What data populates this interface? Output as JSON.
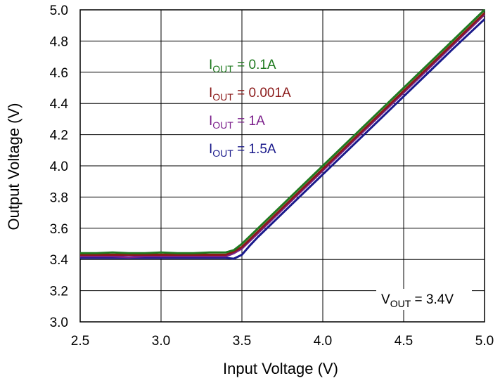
{
  "chart_data": {
    "type": "line",
    "title": "",
    "xlabel": "Input Voltage (V)",
    "ylabel": "Output Voltage (V)",
    "xlim": [
      2.5,
      5.0
    ],
    "ylim": [
      3.0,
      5.0
    ],
    "xticks": [
      "2.5",
      "3.0",
      "3.5",
      "4.0",
      "4.5",
      "5.0"
    ],
    "yticks": [
      "3.0",
      "3.2",
      "3.4",
      "3.6",
      "3.8",
      "4.0",
      "4.2",
      "4.4",
      "4.6",
      "4.8",
      "5.0"
    ],
    "grid": true,
    "annotation": {
      "main": "V",
      "sub": "OUT",
      "rest": " = 3.4V"
    },
    "series": [
      {
        "name": "IOUT = 0.1A",
        "label": {
          "main": "I",
          "sub": "OUT",
          "rest": " = 0.1A"
        },
        "color": "#1f7a1f",
        "x": [
          2.5,
          2.6,
          2.7,
          2.8,
          2.9,
          3.0,
          3.1,
          3.2,
          3.3,
          3.4,
          3.45,
          3.5,
          3.55,
          3.6,
          3.8,
          4.0,
          4.2,
          4.4,
          4.6,
          4.8,
          5.0
        ],
        "y": [
          3.44,
          3.44,
          3.445,
          3.44,
          3.44,
          3.445,
          3.44,
          3.44,
          3.445,
          3.445,
          3.46,
          3.5,
          3.55,
          3.6,
          3.8,
          4.0,
          4.2,
          4.4,
          4.6,
          4.8,
          5.0
        ]
      },
      {
        "name": "IOUT = 0.001A",
        "label": {
          "main": "I",
          "sub": "OUT",
          "rest": " = 0.001A"
        },
        "color": "#8b1a1a",
        "x": [
          2.5,
          2.6,
          2.7,
          2.8,
          2.9,
          3.0,
          3.1,
          3.2,
          3.3,
          3.4,
          3.45,
          3.5,
          3.55,
          3.6,
          3.8,
          4.0,
          4.2,
          4.4,
          4.6,
          4.8,
          5.0
        ],
        "y": [
          3.43,
          3.43,
          3.43,
          3.43,
          3.43,
          3.43,
          3.43,
          3.43,
          3.43,
          3.43,
          3.45,
          3.48,
          3.53,
          3.58,
          3.78,
          3.98,
          4.18,
          4.38,
          4.58,
          4.78,
          4.98
        ]
      },
      {
        "name": "IOUT = 1A",
        "label": {
          "main": "I",
          "sub": "OUT",
          "rest": " = 1A"
        },
        "color": "#7b1f8b",
        "x": [
          2.5,
          2.6,
          2.7,
          2.8,
          2.9,
          3.0,
          3.1,
          3.2,
          3.3,
          3.4,
          3.45,
          3.5,
          3.55,
          3.6,
          3.8,
          4.0,
          4.2,
          4.4,
          4.6,
          4.8,
          5.0
        ],
        "y": [
          3.42,
          3.42,
          3.42,
          3.415,
          3.42,
          3.42,
          3.42,
          3.42,
          3.42,
          3.42,
          3.44,
          3.47,
          3.52,
          3.57,
          3.77,
          3.97,
          4.17,
          4.37,
          4.57,
          4.77,
          4.97
        ]
      },
      {
        "name": "IOUT = 1.5A",
        "label": {
          "main": "I",
          "sub": "OUT",
          "rest": " = 1.5A"
        },
        "color": "#1a1a8b",
        "x": [
          2.5,
          2.6,
          2.7,
          2.8,
          2.9,
          3.0,
          3.1,
          3.2,
          3.3,
          3.4,
          3.45,
          3.5,
          3.55,
          3.6,
          3.8,
          4.0,
          4.2,
          4.4,
          4.6,
          4.8,
          5.0
        ],
        "y": [
          3.41,
          3.41,
          3.41,
          3.41,
          3.41,
          3.41,
          3.41,
          3.41,
          3.41,
          3.41,
          3.405,
          3.43,
          3.49,
          3.545,
          3.745,
          3.945,
          4.145,
          4.345,
          4.545,
          4.745,
          4.94
        ]
      }
    ]
  }
}
